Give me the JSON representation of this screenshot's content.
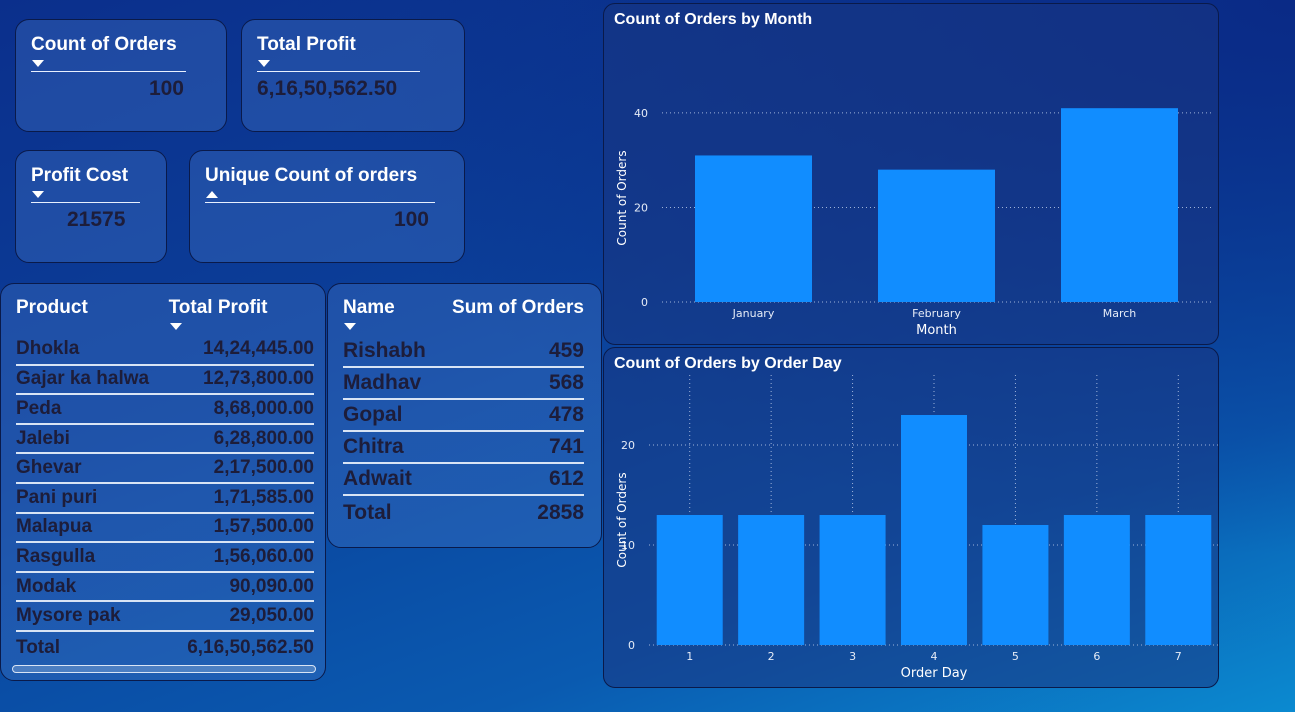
{
  "kpis": {
    "count_of_orders": {
      "title": "Count of Orders",
      "value": "100"
    },
    "total_profit": {
      "title": "Total Profit",
      "value": "6,16,50,562.50"
    },
    "profit_cost": {
      "title": "Profit Cost",
      "value": "21575"
    },
    "unique_count": {
      "title": "Unique Count of orders",
      "value": "100"
    }
  },
  "product_table": {
    "headers": [
      "Product",
      "Total Profit"
    ],
    "rows": [
      [
        "Dhokla",
        "14,24,445.00"
      ],
      [
        "Gajar ka halwa",
        "12,73,800.00"
      ],
      [
        "Peda",
        "8,68,000.00"
      ],
      [
        "Jalebi",
        "6,28,800.00"
      ],
      [
        "Ghevar",
        "2,17,500.00"
      ],
      [
        "Pani puri",
        "1,71,585.00"
      ],
      [
        "Malapua",
        "1,57,500.00"
      ],
      [
        "Rasgulla",
        "1,56,060.00"
      ],
      [
        "Modak",
        "90,090.00"
      ],
      [
        "Mysore pak",
        "29,050.00"
      ]
    ],
    "total": [
      "Total",
      "6,16,50,562.50"
    ]
  },
  "name_table": {
    "headers": [
      "Name",
      "Sum of Orders"
    ],
    "rows": [
      [
        "Rishabh",
        "459"
      ],
      [
        "Madhav",
        "568"
      ],
      [
        "Gopal",
        "478"
      ],
      [
        "Chitra",
        "741"
      ],
      [
        "Adwait",
        "612"
      ]
    ],
    "total": [
      "Total",
      "2858"
    ]
  },
  "colors": {
    "bar": "#118dff",
    "panel_border": "#0a1a4a",
    "value_text": "#1d1d3a"
  },
  "chart_data": [
    {
      "type": "bar",
      "title": "Count of Orders by Month",
      "xlabel": "Month",
      "ylabel": "Count of Orders",
      "categories": [
        "January",
        "February",
        "March"
      ],
      "values": [
        31,
        28,
        41
      ],
      "ylim": [
        0,
        44
      ],
      "yticks": [
        0,
        20,
        40
      ],
      "grid": "horizontal-dotted"
    },
    {
      "type": "bar",
      "title": "Count of Orders by Order Day",
      "xlabel": "Order Day",
      "ylabel": "Count of Orders",
      "categories": [
        "1",
        "2",
        "3",
        "4",
        "5",
        "6",
        "7"
      ],
      "values": [
        13,
        13,
        13,
        23,
        12,
        13,
        13
      ],
      "ylim": [
        0,
        25
      ],
      "yticks": [
        0,
        10,
        20
      ],
      "grid": "both-dotted"
    }
  ]
}
